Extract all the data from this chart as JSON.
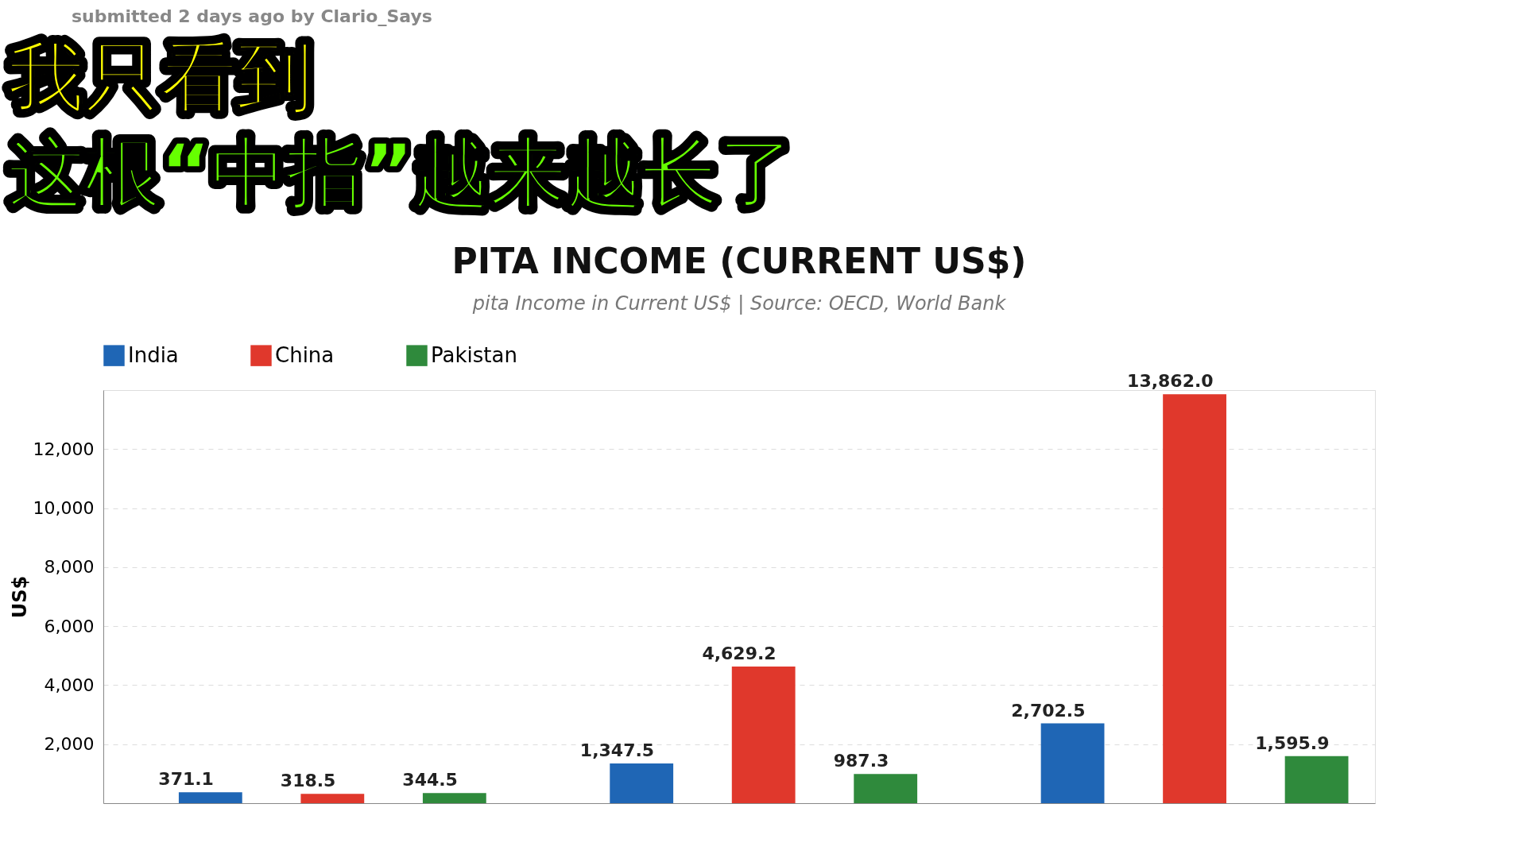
{
  "chart_data": {
    "type": "bar",
    "title": "PITA INCOME (CURRENT US$)",
    "subtitle": "pita Income in Current US$ | Source: OECD, World Bank",
    "ylabel": "US$",
    "categories": [
      null,
      null,
      null
    ],
    "series": [
      {
        "name": "India",
        "color": "#1f66b5",
        "values": [
          371.1,
          1347.5,
          2702.5
        ],
        "value_labels": [
          "371.1",
          "1,347.5",
          "2,702.5"
        ]
      },
      {
        "name": "China",
        "color": "#e0382c",
        "values": [
          318.5,
          4629.2,
          13862.0
        ],
        "value_labels": [
          "318.5",
          "4,629.2",
          "13,862.0"
        ]
      },
      {
        "name": "Pakistan",
        "color": "#2f8a3c",
        "values": [
          344.5,
          987.3,
          1595.9
        ],
        "value_labels": [
          "344.5",
          "987.3",
          "1,595.9"
        ]
      }
    ],
    "ylim": [
      0,
      14000
    ],
    "yticks": [
      {
        "value": 0,
        "label": null
      },
      {
        "value": 2000,
        "label": "2,000"
      },
      {
        "value": 4000,
        "label": "4,000"
      },
      {
        "value": 6000,
        "label": "6,000"
      },
      {
        "value": 8000,
        "label": "8,000"
      },
      {
        "value": 10000,
        "label": "10,000"
      },
      {
        "value": 12000,
        "label": "12,000"
      },
      {
        "value": 14000,
        "label": null
      }
    ],
    "grid": "y",
    "legend": "top",
    "tick_labels": "y",
    "annotations": [
      "submitted 2 days ago by Clario_Says",
      "我只看到",
      "这根“中指”越来越长了"
    ]
  }
}
